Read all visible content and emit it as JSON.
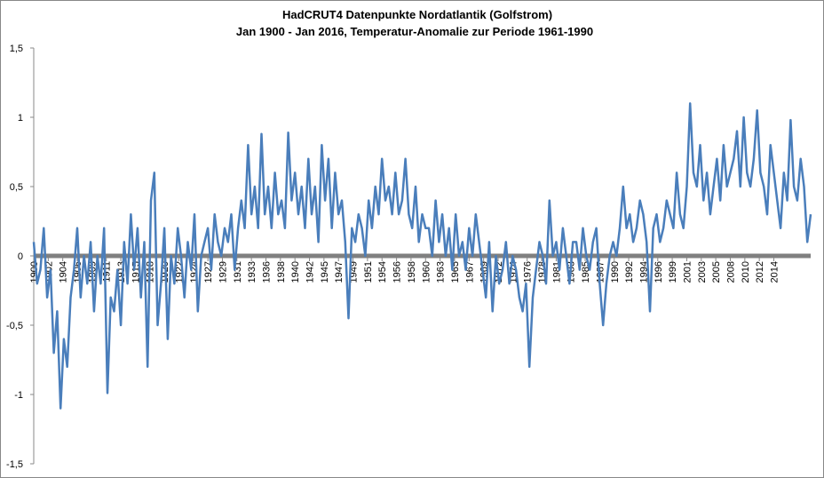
{
  "chart_data": {
    "type": "line",
    "title": "HadCRUT4 Datenpunkte Nordatlantik (Golfstrom)",
    "subtitle": "Jan 1900  - Jan 2016,  Temperatur-Anomalie zur Periode 1961-1990",
    "color": "#4a7ebb",
    "ylim": [
      -1.5,
      1.5
    ],
    "yticks": [
      {
        "value": -1.5,
        "label": "-1,5"
      },
      -1,
      {
        "value": -0.5,
        "label": "-0,5"
      },
      0,
      {
        "value": 0.5,
        "label": "0,5"
      },
      1,
      {
        "value": 1.5,
        "label": "1,5"
      }
    ],
    "xlim": [
      1900,
      2016
    ],
    "xticks": [
      {
        "value": 1900,
        "label": "1900"
      },
      {
        "value": 1902.17,
        "label": "1902"
      },
      {
        "value": 1904.33,
        "label": "1904"
      },
      {
        "value": 1906.5,
        "label": "1906"
      },
      {
        "value": 1908.67,
        "label": "1909"
      },
      {
        "value": 1910.83,
        "label": "1911"
      },
      {
        "value": 1913,
        "label": "1913"
      },
      {
        "value": 1915.17,
        "label": "1915"
      },
      {
        "value": 1917.33,
        "label": "1918"
      },
      {
        "value": 1919.5,
        "label": "1920"
      },
      {
        "value": 1921.67,
        "label": "1922"
      },
      {
        "value": 1923.83,
        "label": "1924"
      },
      {
        "value": 1926,
        "label": "1927"
      },
      {
        "value": 1928.17,
        "label": "1929"
      },
      {
        "value": 1930.33,
        "label": "1931"
      },
      {
        "value": 1932.5,
        "label": "1933"
      },
      {
        "value": 1934.67,
        "label": "1936"
      },
      {
        "value": 1936.83,
        "label": "1938"
      },
      {
        "value": 1939,
        "label": "1940"
      },
      {
        "value": 1941.17,
        "label": "1942"
      },
      {
        "value": 1943.33,
        "label": "1945"
      },
      {
        "value": 1945.5,
        "label": "1947"
      },
      {
        "value": 1947.67,
        "label": "1949"
      },
      {
        "value": 1949.83,
        "label": "1951"
      },
      {
        "value": 1952,
        "label": "1954"
      },
      {
        "value": 1954.17,
        "label": "1956"
      },
      {
        "value": 1956.33,
        "label": "1958"
      },
      {
        "value": 1958.5,
        "label": "1960"
      },
      {
        "value": 1960.67,
        "label": "1963"
      },
      {
        "value": 1962.83,
        "label": "1965"
      },
      {
        "value": 1965,
        "label": "1967"
      },
      {
        "value": 1967.17,
        "label": "1969"
      },
      {
        "value": 1969.33,
        "label": "1972"
      },
      {
        "value": 1971.5,
        "label": "1974"
      },
      {
        "value": 1973.67,
        "label": "1976"
      },
      {
        "value": 1975.83,
        "label": "1978"
      },
      {
        "value": 1978,
        "label": "1981"
      },
      {
        "value": 1980.17,
        "label": "1983"
      },
      {
        "value": 1982.33,
        "label": "1985"
      },
      {
        "value": 1984.5,
        "label": "1987"
      },
      {
        "value": 1986.67,
        "label": "1990"
      },
      {
        "value": 1988.83,
        "label": "1992"
      },
      {
        "value": 1991,
        "label": "1994"
      },
      {
        "value": 1993.17,
        "label": "1996"
      },
      {
        "value": 1995.33,
        "label": "1999"
      },
      {
        "value": 1997.5,
        "label": "2001"
      },
      {
        "value": 1999.67,
        "label": "2003"
      },
      {
        "value": 2001.83,
        "label": "2005"
      },
      {
        "value": 2004,
        "label": "2008"
      },
      {
        "value": 2006.17,
        "label": "2010"
      },
      {
        "value": 2008.33,
        "label": "2012"
      },
      {
        "value": 2010.5,
        "label": "2014"
      }
    ],
    "x": [
      1900,
      1900.5,
      1901,
      1901.5,
      1902,
      1902.5,
      1903,
      1903.5,
      1904,
      1904.5,
      1905,
      1905.5,
      1906,
      1906.5,
      1907,
      1907.5,
      1908,
      1908.5,
      1909,
      1909.5,
      1910,
      1910.5,
      1911,
      1911.5,
      1912,
      1912.5,
      1913,
      1913.5,
      1914,
      1914.5,
      1915,
      1915.5,
      1916,
      1916.5,
      1917,
      1917.5,
      1918,
      1918.5,
      1919,
      1919.5,
      1920,
      1920.5,
      1921,
      1921.5,
      1922,
      1922.5,
      1923,
      1923.5,
      1924,
      1924.5,
      1925,
      1925.5,
      1926,
      1926.5,
      1927,
      1927.5,
      1928,
      1928.5,
      1929,
      1929.5,
      1930,
      1930.5,
      1931,
      1931.5,
      1932,
      1932.5,
      1933,
      1933.5,
      1934,
      1934.5,
      1935,
      1935.5,
      1936,
      1936.5,
      1937,
      1937.5,
      1938,
      1938.5,
      1939,
      1939.5,
      1940,
      1940.5,
      1941,
      1941.5,
      1942,
      1942.5,
      1943,
      1943.5,
      1944,
      1944.5,
      1945,
      1945.5,
      1946,
      1946.5,
      1947,
      1947.5,
      1948,
      1948.5,
      1949,
      1949.5,
      1950,
      1950.5,
      1951,
      1951.5,
      1952,
      1952.5,
      1953,
      1953.5,
      1954,
      1954.5,
      1955,
      1955.5,
      1956,
      1956.5,
      1957,
      1957.5,
      1958,
      1958.5,
      1959,
      1959.5,
      1960,
      1960.5,
      1961,
      1961.5,
      1962,
      1962.5,
      1963,
      1963.5,
      1964,
      1964.5,
      1965,
      1965.5,
      1966,
      1966.5,
      1967,
      1967.5,
      1968,
      1968.5,
      1969,
      1969.5,
      1970,
      1970.5,
      1971,
      1971.5,
      1972,
      1972.5,
      1973,
      1973.5,
      1974,
      1974.5,
      1975,
      1975.5,
      1976,
      1976.5,
      1977,
      1977.5,
      1978,
      1978.5,
      1979,
      1979.5,
      1980,
      1980.5,
      1981,
      1981.5,
      1982,
      1982.5,
      1983,
      1983.5,
      1984,
      1984.5,
      1985,
      1985.5,
      1986,
      1986.5,
      1987,
      1987.5,
      1988,
      1988.5,
      1989,
      1989.5,
      1990,
      1990.5,
      1991,
      1991.5,
      1992,
      1992.5,
      1993,
      1993.5,
      1994,
      1994.5,
      1995,
      1995.5,
      1996,
      1996.5,
      1997,
      1997.5,
      1998,
      1998.5,
      1999,
      1999.5,
      2000,
      2000.5,
      2001,
      2001.5,
      2002,
      2002.5,
      2003,
      2003.5,
      2004,
      2004.5,
      2005,
      2005.5,
      2006,
      2006.5,
      2007,
      2007.5,
      2008,
      2008.5,
      2009,
      2009.5,
      2010,
      2010.5,
      2011,
      2011.5,
      2012,
      2012.5,
      2013,
      2013.5,
      2014,
      2014.5,
      2015,
      2015.5,
      2016
    ],
    "values": [
      0.1,
      -0.2,
      -0.1,
      0.2,
      -0.3,
      -0.1,
      -0.7,
      -0.4,
      -1.1,
      -0.6,
      -0.8,
      -0.3,
      -0.1,
      0.2,
      -0.3,
      0.0,
      -0.2,
      0.1,
      -0.4,
      0.0,
      -0.2,
      0.2,
      -0.99,
      -0.3,
      -0.4,
      -0.1,
      -0.5,
      0.1,
      -0.2,
      0.3,
      -0.1,
      0.2,
      -0.3,
      0.1,
      -0.8,
      0.4,
      0.6,
      -0.5,
      -0.2,
      0.2,
      -0.6,
      0.0,
      -0.2,
      0.2,
      0.0,
      -0.3,
      0.1,
      -0.1,
      0.3,
      -0.4,
      0.0,
      0.1,
      0.2,
      -0.1,
      0.3,
      0.1,
      0.0,
      0.2,
      0.1,
      0.3,
      -0.1,
      0.2,
      0.4,
      0.2,
      0.8,
      0.3,
      0.5,
      0.2,
      0.88,
      0.3,
      0.5,
      0.2,
      0.6,
      0.3,
      0.4,
      0.2,
      0.89,
      0.4,
      0.6,
      0.3,
      0.5,
      0.2,
      0.7,
      0.3,
      0.5,
      0.1,
      0.8,
      0.4,
      0.7,
      0.2,
      0.6,
      0.3,
      0.4,
      0.1,
      -0.45,
      0.2,
      0.1,
      0.3,
      0.2,
      0.0,
      0.4,
      0.2,
      0.5,
      0.3,
      0.7,
      0.4,
      0.5,
      0.3,
      0.6,
      0.3,
      0.4,
      0.7,
      0.3,
      0.2,
      0.5,
      0.1,
      0.3,
      0.2,
      0.2,
      0.0,
      0.4,
      0.1,
      0.3,
      0.0,
      0.2,
      -0.1,
      0.3,
      0.0,
      0.1,
      -0.1,
      0.2,
      0.0,
      0.3,
      0.1,
      -0.1,
      -0.3,
      0.1,
      -0.4,
      0.0,
      -0.2,
      -0.1,
      0.1,
      -0.2,
      0.0,
      -0.1,
      -0.3,
      -0.4,
      -0.2,
      -0.8,
      -0.3,
      -0.1,
      0.1,
      0.0,
      -0.2,
      0.4,
      0.0,
      0.1,
      -0.1,
      0.2,
      0.0,
      -0.2,
      0.1,
      0.1,
      -0.1,
      0.2,
      0.0,
      -0.1,
      0.1,
      0.2,
      -0.2,
      -0.5,
      -0.2,
      0.0,
      0.1,
      0.0,
      0.2,
      0.5,
      0.2,
      0.3,
      0.1,
      0.2,
      0.4,
      0.3,
      0.1,
      -0.4,
      0.2,
      0.3,
      0.1,
      0.2,
      0.4,
      0.3,
      0.2,
      0.6,
      0.3,
      0.2,
      0.5,
      1.1,
      0.6,
      0.5,
      0.8,
      0.4,
      0.6,
      0.3,
      0.5,
      0.7,
      0.4,
      0.8,
      0.5,
      0.6,
      0.7,
      0.9,
      0.5,
      1.0,
      0.6,
      0.5,
      0.7,
      1.05,
      0.6,
      0.5,
      0.3,
      0.8,
      0.6,
      0.4,
      0.2,
      0.6,
      0.4,
      0.98,
      0.5,
      0.4,
      0.7,
      0.5,
      0.1,
      0.3
    ]
  }
}
